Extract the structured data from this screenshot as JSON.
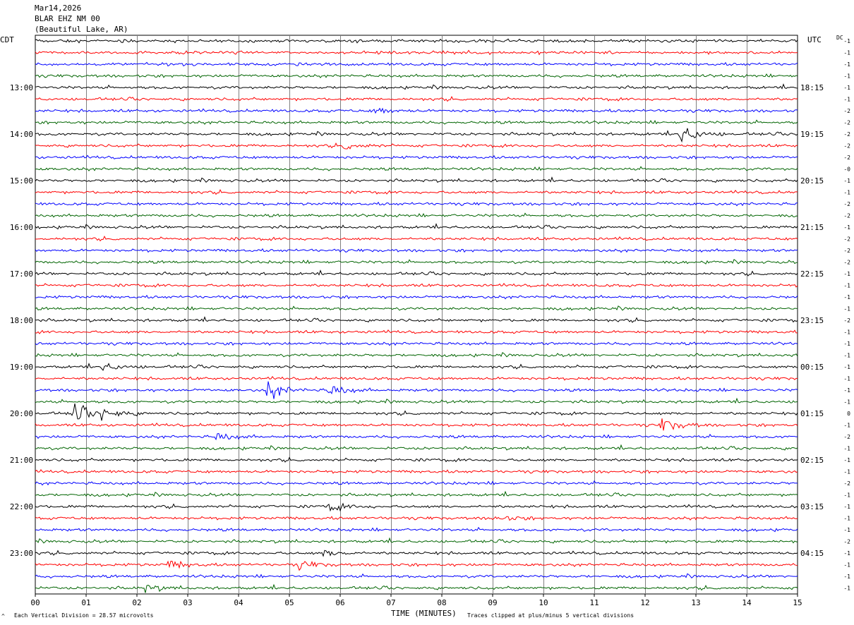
{
  "header": {
    "date": "Mar14,2026",
    "station": "BLAR EHZ NM 00",
    "location": "(Beautiful Lake, AR)"
  },
  "left_tz": "CDT",
  "right_tz": "UTC",
  "dc_label": "DC",
  "footer": {
    "scale_note": "Each Vertical Division =   28.57 microvolts",
    "xlabel": "TIME (MINUTES)",
    "clip_note": "Traces clipped at plus/minus 5 vertical divisions",
    "corner_mark": "^"
  },
  "colors": {
    "trace_cycle": [
      "#000000",
      "#ff0000",
      "#0000ff",
      "#006400"
    ],
    "grid": "#808080"
  },
  "chart_data": {
    "type": "line",
    "title": "",
    "xlabel": "TIME (MINUTES)",
    "ylabel": "",
    "xlim": [
      0,
      15
    ],
    "x_ticks": [
      "00",
      "01",
      "02",
      "03",
      "04",
      "05",
      "06",
      "07",
      "08",
      "09",
      "10",
      "11",
      "12",
      "13",
      "14",
      "15"
    ],
    "rows_per_hour": 4,
    "minutes_per_row": 15,
    "start_local": "12:00",
    "row_count": 48,
    "hour_labels_left": [
      "13:00",
      "14:00",
      "15:00",
      "16:00",
      "17:00",
      "18:00",
      "19:00",
      "20:00",
      "21:00",
      "22:00",
      "23:00"
    ],
    "hour_labels_right": [
      "18:15",
      "19:15",
      "20:15",
      "21:15",
      "22:15",
      "23:15",
      "00:15",
      "01:15",
      "02:15",
      "03:15",
      "04:15"
    ],
    "dc_offsets": [
      "-1",
      "-1",
      "-1",
      "-1",
      "-1",
      "-1",
      "-2",
      "-2",
      "-2",
      "-2",
      "-2",
      "-0",
      "-1",
      "-1",
      "-2",
      "-2",
      "-1",
      "-2",
      "-2",
      "-2",
      "-1",
      "-1",
      "-1",
      "-1",
      "-2",
      "-1",
      "-1",
      "-1",
      "-1",
      "-1",
      "-1",
      "-1",
      "0",
      "-1",
      "-2",
      "-1",
      "-1",
      "-1",
      "-2",
      "-1",
      "-1",
      "-1",
      "-1",
      "-2",
      "-1",
      "-1",
      "-1",
      "-1"
    ],
    "notable_events": [
      {
        "row": 8,
        "minute": 12.7,
        "amplitude": 3.5
      },
      {
        "row": 9,
        "minute": 6.1,
        "amplitude": 1.3
      },
      {
        "row": 6,
        "minute": 6.7,
        "amplitude": 1.2
      },
      {
        "row": 28,
        "minute": 1.35,
        "amplitude": 1.3
      },
      {
        "row": 30,
        "minute": 4.6,
        "amplitude": 2.8
      },
      {
        "row": 30,
        "minute": 5.8,
        "amplitude": 1.8
      },
      {
        "row": 32,
        "minute": 0.75,
        "amplitude": 3.2
      },
      {
        "row": 32,
        "minute": 1.35,
        "amplitude": 2.0
      },
      {
        "row": 33,
        "minute": 12.35,
        "amplitude": 2.3
      },
      {
        "row": 34,
        "minute": 3.6,
        "amplitude": 1.2
      },
      {
        "row": 47,
        "minute": 2.2,
        "amplitude": 1.2
      },
      {
        "row": 45,
        "minute": 2.65,
        "amplitude": 1.3
      },
      {
        "row": 45,
        "minute": 5.2,
        "amplitude": 1.2
      },
      {
        "row": 40,
        "minute": 5.8,
        "amplitude": 1.3
      },
      {
        "row": 41,
        "minute": 9.1,
        "amplitude": 1.1
      },
      {
        "row": 44,
        "minute": 5.7,
        "amplitude": 1.2
      }
    ]
  }
}
